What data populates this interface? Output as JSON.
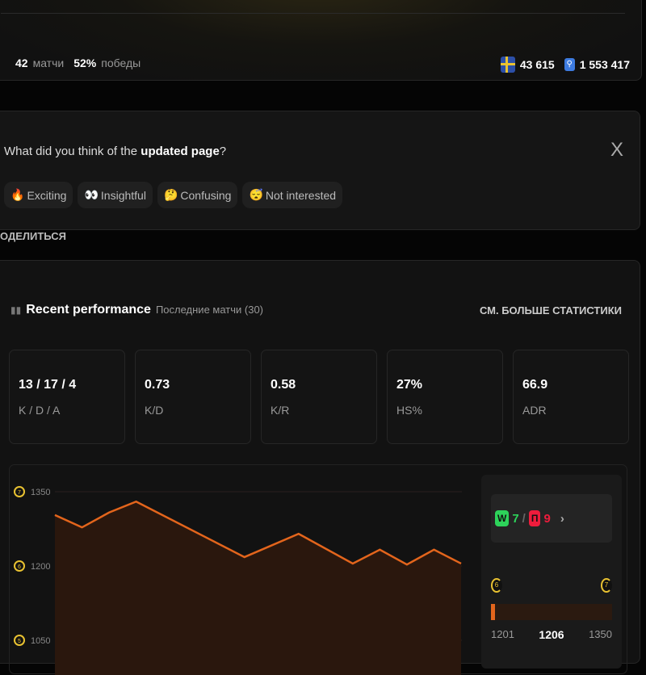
{
  "profile": {
    "matches": "42",
    "matches_label": "матчи",
    "winrate": "52%",
    "winrate_label": "победы",
    "country_rank": "43 615",
    "region_rank": "1 553 417"
  },
  "feedback": {
    "question_prefix": "What did you think of the",
    "question_bold": "updated page",
    "question_suffix": "?",
    "close": "X",
    "options": [
      {
        "icon": "🔥",
        "label": "Exciting"
      },
      {
        "icon": "👀",
        "label": "Insightful"
      },
      {
        "icon": "🤔",
        "label": "Confusing"
      },
      {
        "icon": "😴",
        "label": "Not interested"
      }
    ]
  },
  "share_label": "ОДЕЛИТЬСЯ",
  "performance": {
    "title": "Recent performance",
    "subtitle": "Последние матчи (30)",
    "more": "СМ. БОЛЬШЕ СТАТИСТИКИ",
    "tiles": [
      {
        "value": "13 / 17 / 4",
        "label": "K / D / A"
      },
      {
        "value": "0.73",
        "label": "K/D"
      },
      {
        "value": "0.58",
        "label": "K/R"
      },
      {
        "value": "27%",
        "label": "HS%"
      },
      {
        "value": "66.9",
        "label": "ADR"
      }
    ]
  },
  "chart_data": {
    "type": "area",
    "y_ticks": [
      {
        "value": 1350,
        "level": "7"
      },
      {
        "value": 1200,
        "level": "6"
      },
      {
        "value": 1050,
        "level": "5"
      }
    ],
    "values": [
      1303,
      1278,
      1308,
      1330,
      1218,
      1265,
      1205,
      1233,
      1203,
      1233,
      1205
    ],
    "x_index": [
      0,
      1,
      2,
      3,
      7,
      9,
      11,
      12,
      13,
      14,
      15
    ],
    "color": "#e3651c"
  },
  "elo": {
    "wins_label": "W",
    "wins": "7",
    "losses_label": "П",
    "losses": "9",
    "level_from": "6",
    "level_to": "7",
    "min": "1201",
    "current": "1206",
    "max": "1350",
    "progress_pct": 3
  }
}
